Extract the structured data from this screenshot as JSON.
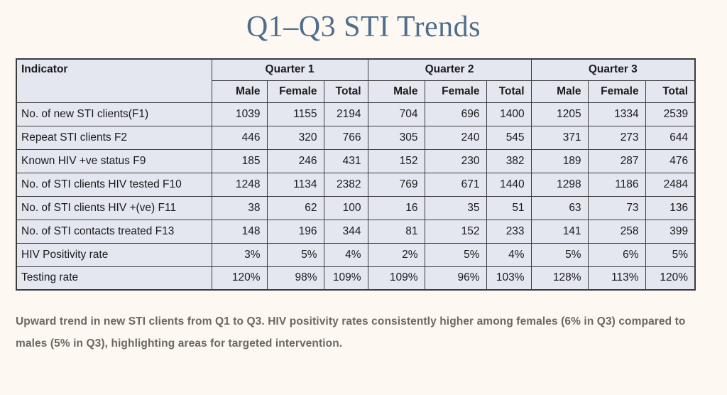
{
  "colors": {
    "page_background": "#fdf8f2",
    "title_text": "#4e6e8e",
    "table_cell_background": "#e4e7f0",
    "table_border": "#3c3c3c",
    "table_text": "#1b1b1b",
    "caption_text": "#6f6662"
  },
  "chart_data": {
    "type": "table",
    "title": "Q1–Q3 STI Trends",
    "indicator_header": "Indicator",
    "column_groups": [
      "Quarter 1",
      "Quarter 2",
      "Quarter 3"
    ],
    "sub_columns": [
      "Male",
      "Female",
      "Total"
    ],
    "rows": [
      {
        "indicator": "No. of new STI clients(F1)",
        "values": [
          "1039",
          "1155",
          "2194",
          "704",
          "696",
          "1400",
          "1205",
          "1334",
          "2539"
        ]
      },
      {
        "indicator": "Repeat STI clients F2",
        "values": [
          "446",
          "320",
          "766",
          "305",
          "240",
          "545",
          "371",
          "273",
          "644"
        ]
      },
      {
        "indicator": "Known HIV +ve status F9",
        "values": [
          "185",
          "246",
          "431",
          "152",
          "230",
          "382",
          "189",
          "287",
          "476"
        ]
      },
      {
        "indicator": "No. of STI clients HIV tested F10",
        "values": [
          "1248",
          "1134",
          "2382",
          "769",
          "671",
          "1440",
          "1298",
          "1186",
          "2484"
        ]
      },
      {
        "indicator": "No. of STI clients HIV +(ve)  F11",
        "values": [
          "38",
          "62",
          "100",
          "16",
          "35",
          "51",
          "63",
          "73",
          "136"
        ]
      },
      {
        "indicator": "No. of STI contacts treated F13",
        "values": [
          "148",
          "196",
          "344",
          "81",
          "152",
          "233",
          "141",
          "258",
          "399"
        ]
      },
      {
        "indicator": "HIV Positivity rate",
        "values": [
          "3%",
          "5%",
          "4%",
          "2%",
          "5%",
          "4%",
          "5%",
          "6%",
          "5%"
        ]
      },
      {
        "indicator": "Testing rate",
        "values": [
          "120%",
          "98%",
          "109%",
          "109%",
          "96%",
          "103%",
          "128%",
          "113%",
          "120%"
        ]
      }
    ],
    "caption": "Upward trend in new STI clients from Q1 to Q3. HIV positivity rates consistently higher among females (6% in Q3) compared to males (5% in Q3), highlighting areas for targeted intervention."
  }
}
